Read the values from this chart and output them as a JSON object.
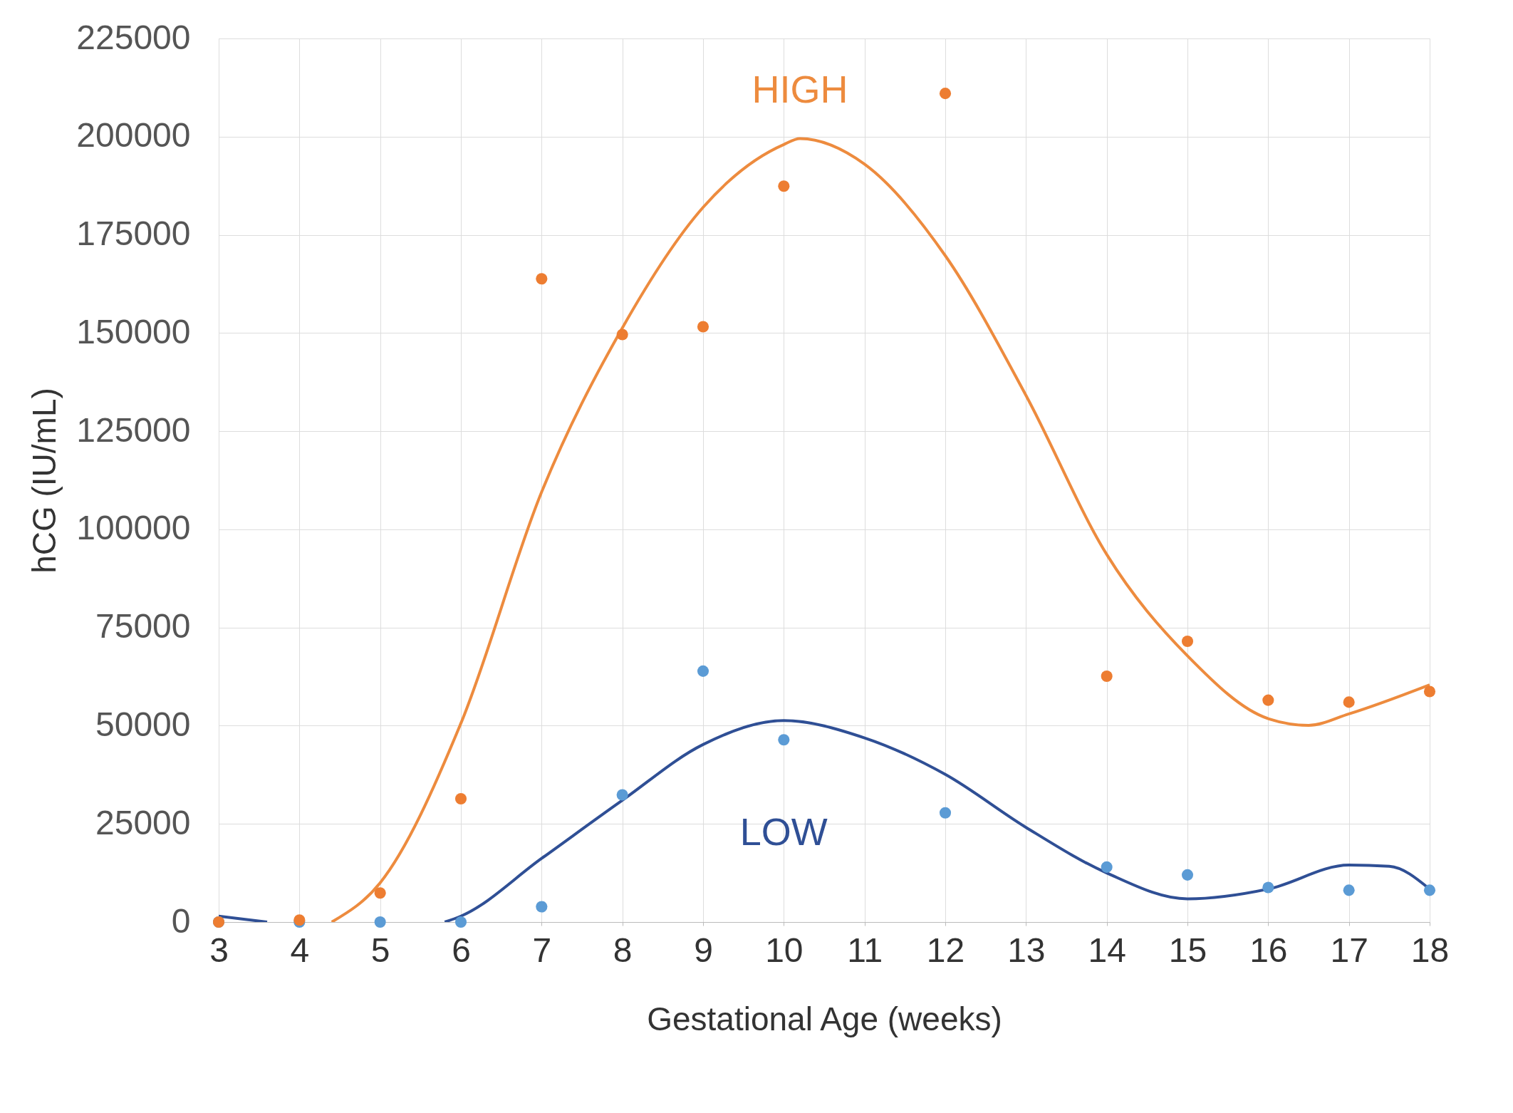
{
  "chart_data": {
    "type": "scatter",
    "xlabel": "Gestational Age (weeks)",
    "ylabel": "hCG (IU/mL)",
    "xlim": [
      3,
      18
    ],
    "xticks": [
      3,
      4,
      5,
      6,
      7,
      8,
      9,
      10,
      11,
      12,
      13,
      14,
      15,
      16,
      17,
      18
    ],
    "ylim": [
      0,
      225000
    ],
    "yticks": [
      0,
      25000,
      50000,
      75000,
      100000,
      125000,
      150000,
      175000,
      200000,
      225000
    ],
    "grid": true,
    "marker": "circle",
    "series": [
      {
        "type": "line",
        "name": "HIGH",
        "marker": "none",
        "line_style": "solid",
        "color": "#ed8b3e",
        "x": [
          4.4,
          5,
          6,
          7,
          8,
          9,
          10,
          10.2,
          11,
          12,
          13,
          14,
          15,
          16,
          16.5,
          17,
          18
        ],
        "values": [
          0,
          10000,
          50600,
          109500,
          151300,
          182000,
          198000,
          199500,
          193000,
          169700,
          134100,
          93600,
          67800,
          51800,
          50100,
          53000,
          60400
        ]
      },
      {
        "type": "line",
        "name": "LOW",
        "marker": "none",
        "line_style": "solid",
        "color": "#2f4f95",
        "x": [
          3,
          3.6,
          4.7,
          5.8,
          6,
          7,
          8,
          9,
          10,
          11,
          12,
          13,
          14,
          15,
          16,
          17,
          17.5,
          18
        ],
        "values": [
          1500,
          0,
          null,
          0,
          1500,
          16200,
          31000,
          45200,
          51300,
          46900,
          37600,
          24100,
          12500,
          5900,
          8400,
          14500,
          14200,
          8400
        ]
      },
      {
        "color": "#5b9bd5",
        "x": [
          3,
          4,
          5,
          6,
          7,
          8,
          9,
          10,
          12,
          14,
          15,
          16,
          17,
          18
        ],
        "values": [
          0,
          0,
          0,
          0,
          3900,
          32400,
          63900,
          46400,
          27800,
          14000,
          12000,
          8800,
          8100,
          8100
        ]
      },
      {
        "color": "#ed7d31",
        "x": [
          3,
          4,
          5,
          6,
          7,
          8,
          9,
          10,
          12,
          14,
          15,
          16,
          17,
          18
        ],
        "values": [
          0,
          500,
          7400,
          31400,
          163800,
          149600,
          151600,
          187400,
          211000,
          62600,
          71500,
          56500,
          56000,
          58700
        ]
      }
    ]
  }
}
